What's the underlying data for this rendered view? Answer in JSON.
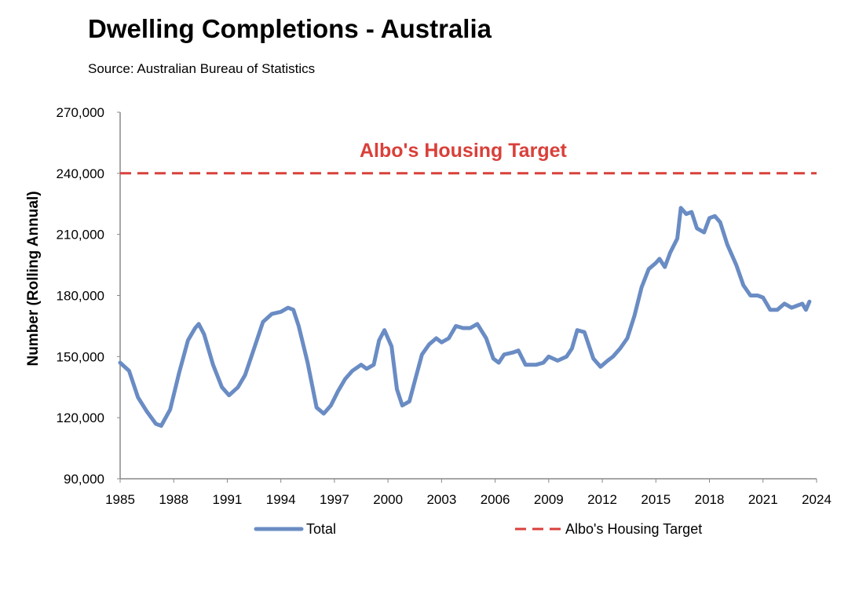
{
  "title": "Dwelling Completions - Australia",
  "subtitle": "Source: Australian Bureau of Statistics",
  "chart_data": {
    "type": "line",
    "ylabel": "Number (Rolling Annual)",
    "xlim": [
      1985,
      2024
    ],
    "ylim": [
      90000,
      270000
    ],
    "x_ticks": [
      1985,
      1988,
      1991,
      1994,
      1997,
      2000,
      2003,
      2006,
      2009,
      2012,
      2015,
      2018,
      2021,
      2024
    ],
    "y_ticks": [
      90000,
      120000,
      150000,
      180000,
      210000,
      240000,
      270000
    ],
    "x_tick_labels": [
      "1985",
      "1988",
      "1991",
      "1994",
      "1997",
      "2000",
      "2003",
      "2006",
      "2009",
      "2012",
      "2015",
      "2018",
      "2021",
      "2024"
    ],
    "y_tick_labels": [
      "90,000",
      "120,000",
      "150,000",
      "180,000",
      "210,000",
      "240,000",
      "270,000"
    ],
    "grid": false,
    "legend_position": "bottom",
    "annotation": "Albo's Housing Target",
    "series": [
      {
        "name": "Total",
        "color": "#6a8cc4",
        "style": "solid",
        "x": [
          1985.0,
          1985.5,
          1986.0,
          1986.5,
          1987.0,
          1987.3,
          1987.8,
          1988.3,
          1988.8,
          1989.2,
          1989.4,
          1989.7,
          1990.2,
          1990.7,
          1991.1,
          1991.6,
          1992.0,
          1992.5,
          1993.0,
          1993.5,
          1994.0,
          1994.4,
          1994.7,
          1995.0,
          1995.5,
          1996.0,
          1996.4,
          1996.8,
          1997.2,
          1997.6,
          1998.0,
          1998.5,
          1998.8,
          1999.2,
          1999.5,
          1999.8,
          2000.2,
          2000.5,
          2000.8,
          2001.2,
          2001.5,
          2001.9,
          2002.3,
          2002.7,
          2003.0,
          2003.4,
          2003.8,
          2004.2,
          2004.6,
          2005.0,
          2005.5,
          2005.9,
          2006.2,
          2006.5,
          2007.0,
          2007.3,
          2007.7,
          2008.3,
          2008.7,
          2009.0,
          2009.5,
          2010.0,
          2010.3,
          2010.6,
          2011.0,
          2011.5,
          2011.9,
          2012.3,
          2012.6,
          2013.0,
          2013.4,
          2013.8,
          2014.2,
          2014.6,
          2015.0,
          2015.2,
          2015.5,
          2015.8,
          2016.2,
          2016.4,
          2016.7,
          2017.0,
          2017.3,
          2017.7,
          2018.0,
          2018.3,
          2018.6,
          2019.0,
          2019.5,
          2019.9,
          2020.3,
          2020.7,
          2021.0,
          2021.4,
          2021.8,
          2022.2,
          2022.6,
          2022.9,
          2023.2,
          2023.4,
          2023.6
        ],
        "values": [
          147000,
          143000,
          130000,
          123000,
          117000,
          116000,
          124000,
          142000,
          158000,
          164000,
          166000,
          161000,
          146000,
          135000,
          131000,
          135000,
          141000,
          154000,
          167000,
          171000,
          172000,
          174000,
          173000,
          165000,
          147000,
          125000,
          122000,
          126000,
          133000,
          139000,
          143000,
          146000,
          144000,
          146000,
          158000,
          163000,
          155000,
          134000,
          126000,
          128000,
          138000,
          151000,
          156000,
          159000,
          157000,
          159000,
          165000,
          164000,
          164000,
          166000,
          159000,
          149000,
          147000,
          151000,
          152000,
          153000,
          146000,
          146000,
          147000,
          150000,
          148000,
          150000,
          154000,
          163000,
          162000,
          149000,
          145000,
          148000,
          150000,
          154000,
          159000,
          170000,
          184000,
          193000,
          196000,
          198000,
          194000,
          201000,
          208000,
          223000,
          220000,
          221000,
          213000,
          211000,
          218000,
          219000,
          216000,
          205000,
          195000,
          185000,
          180000,
          180000,
          179000,
          173000,
          173000,
          176000,
          174000,
          175000,
          176000,
          173000,
          177000
        ]
      },
      {
        "name": "Albo's Housing Target",
        "color": "#d9403a",
        "style": "dashed",
        "x": [
          1985,
          2024
        ],
        "values": [
          240000,
          240000
        ]
      }
    ]
  }
}
